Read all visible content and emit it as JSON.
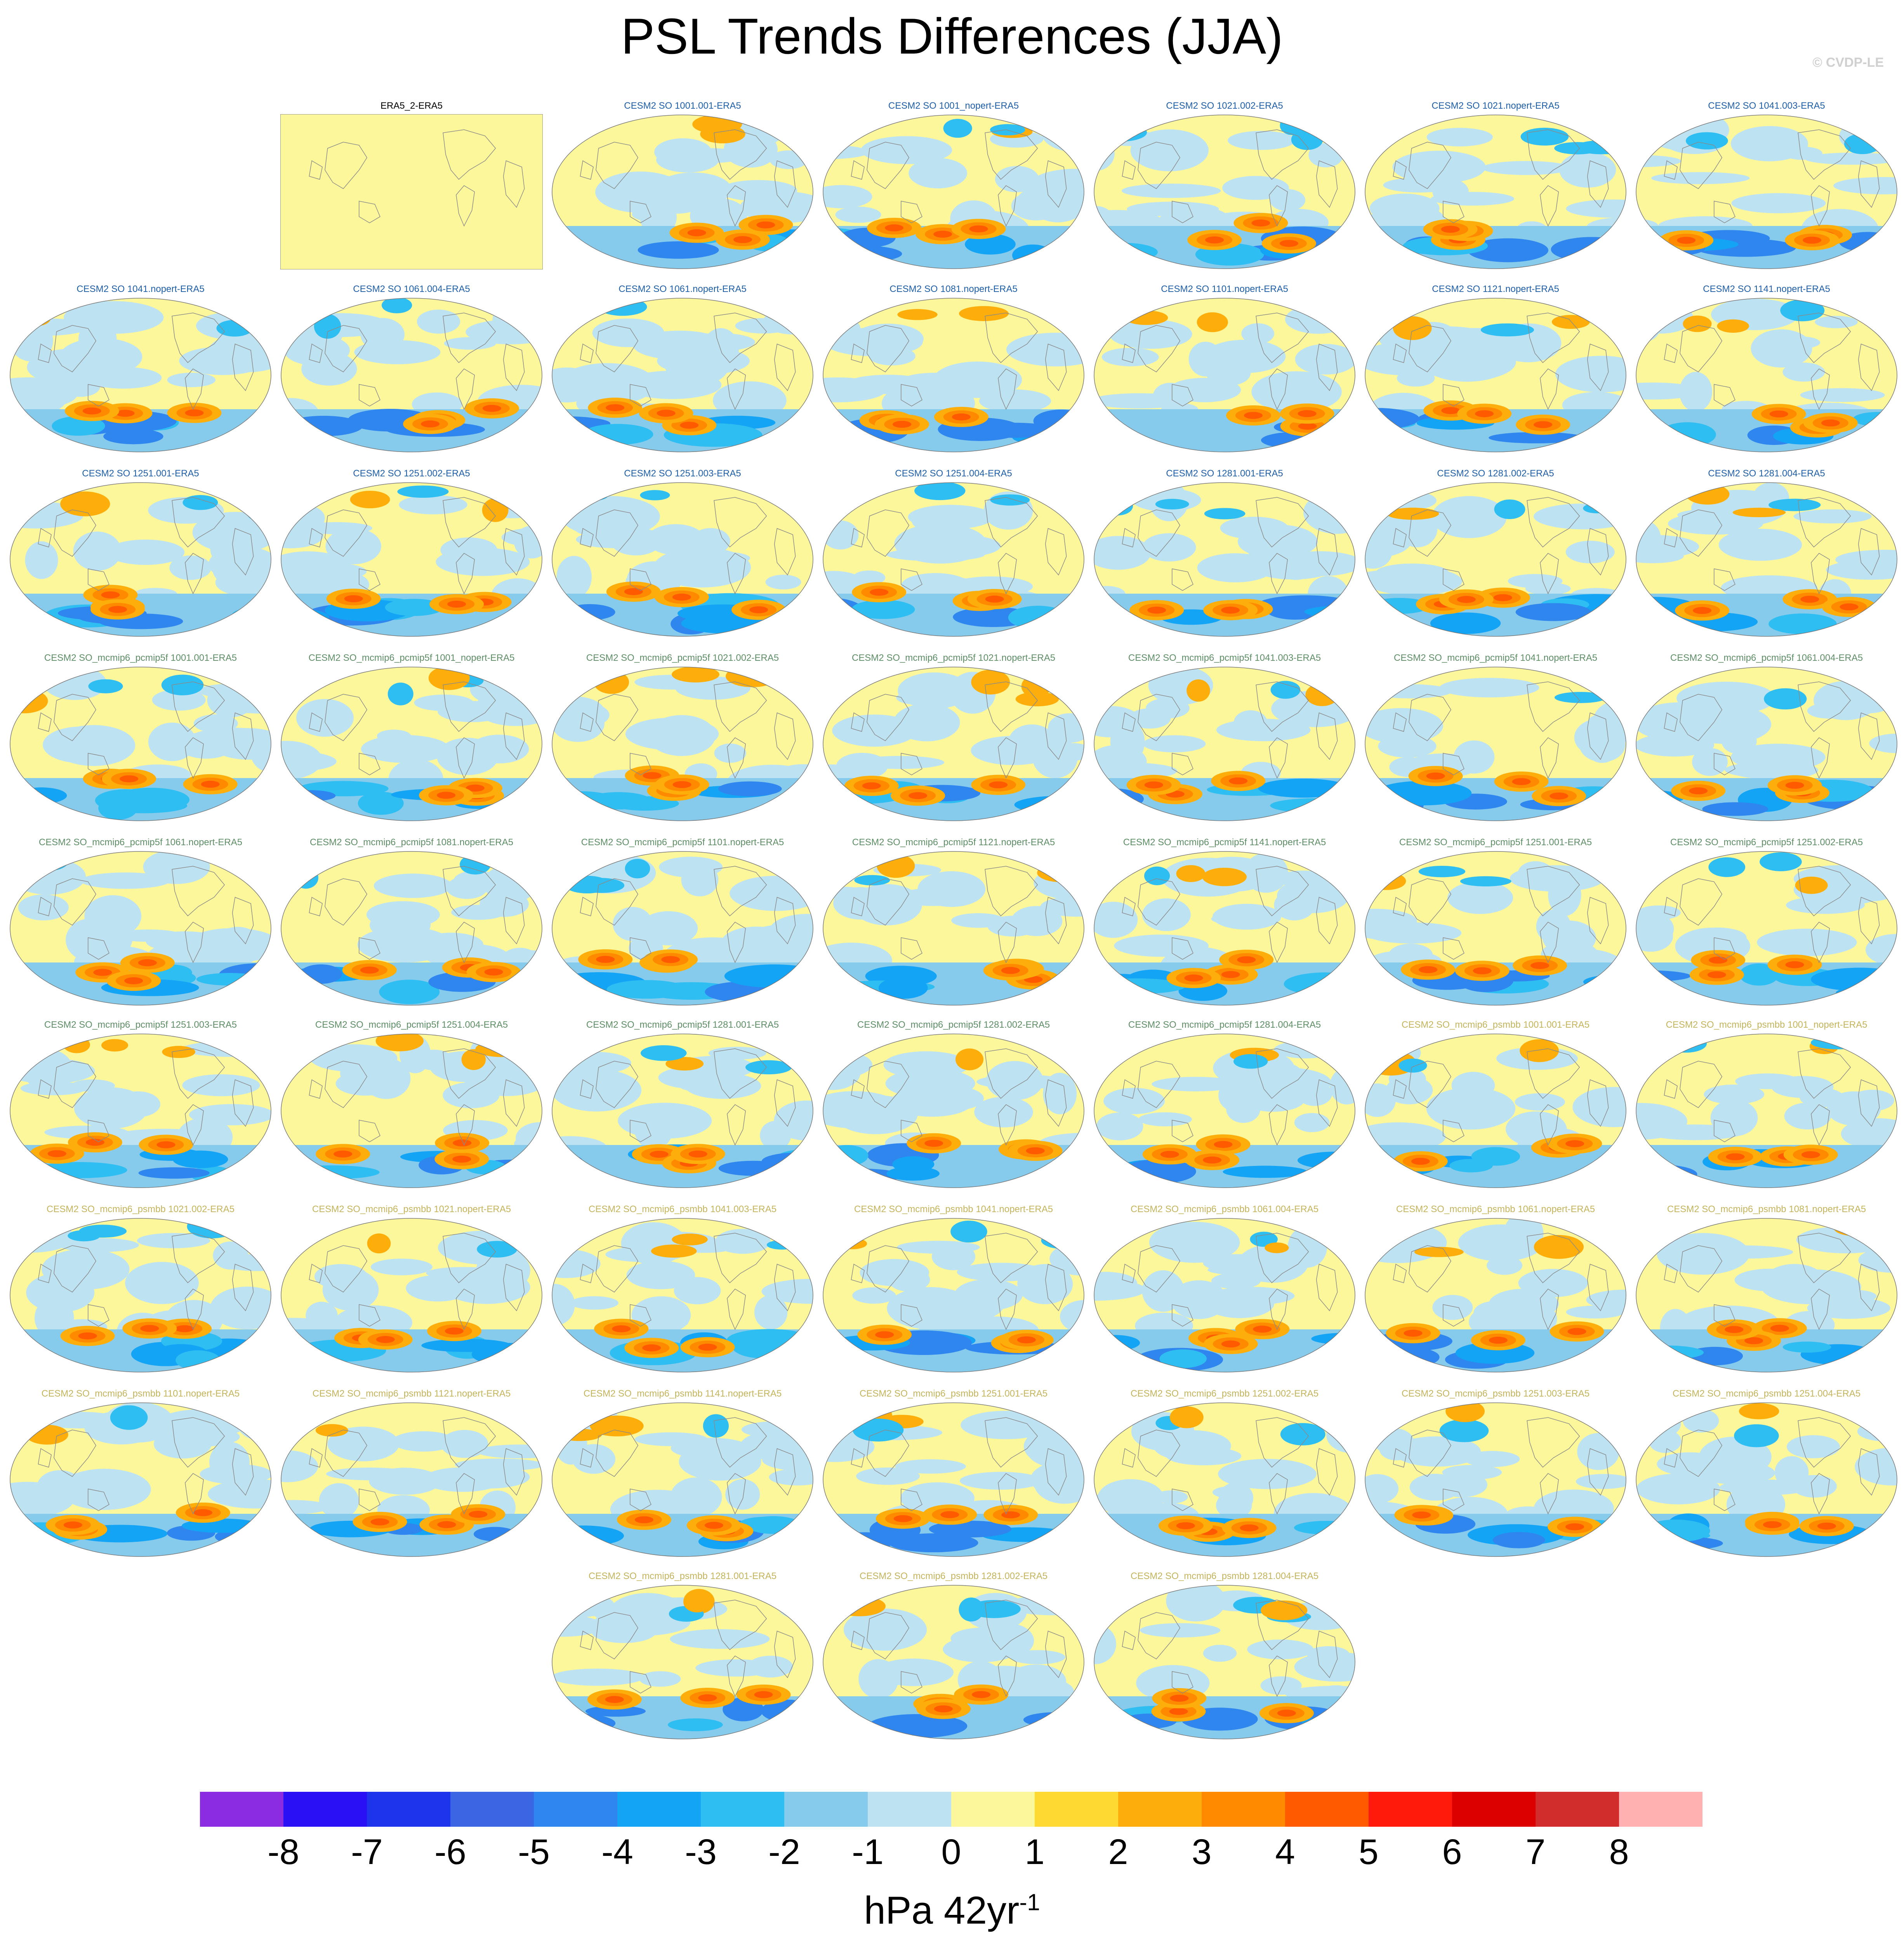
{
  "title": "PSL Trends Differences (JJA)",
  "watermark": "© CVDP-LE",
  "units_base": "hPa 42yr",
  "units_exp": "-1",
  "colorbar": {
    "colors": [
      "#8B2BE2",
      "#2A10F5",
      "#1E33EC",
      "#3A66E4",
      "#2F86EE",
      "#13A4F5",
      "#2EBEF2",
      "#87CBEC",
      "#BDE2F2",
      "#FDF79B",
      "#FDD932",
      "#FDAE0A",
      "#FF8A00",
      "#FF5A00",
      "#FF1A0B",
      "#DD0000",
      "#D22D2D",
      "#FFB0B0"
    ],
    "ticks": [
      "-8",
      "-7",
      "-6",
      "-5",
      "-4",
      "-3",
      "-2",
      "-1",
      "0",
      "1",
      "2",
      "3",
      "4",
      "5",
      "6",
      "7",
      "8"
    ]
  },
  "label_colors": {
    "obs": "#000000",
    "so": "#1F5FA8",
    "pcmip": "#5E8E66",
    "psmbb": "#C4B45C"
  },
  "panels": [
    {
      "label": "ERA5_2-ERA5",
      "group": "obs",
      "seed": 0
    },
    {
      "label": "CESM2 SO 1001.001-ERA5",
      "group": "so",
      "seed": 11
    },
    {
      "label": "CESM2 SO 1001_nopert-ERA5",
      "group": "so",
      "seed": 12
    },
    {
      "label": "CESM2 SO 1021.002-ERA5",
      "group": "so",
      "seed": 13
    },
    {
      "label": "CESM2 SO 1021.nopert-ERA5",
      "group": "so",
      "seed": 14
    },
    {
      "label": "CESM2 SO 1041.003-ERA5",
      "group": "so",
      "seed": 15
    },
    {
      "label": "CESM2 SO 1041.nopert-ERA5",
      "group": "so",
      "seed": 16
    },
    {
      "label": "CESM2 SO 1061.004-ERA5",
      "group": "so",
      "seed": 17
    },
    {
      "label": "CESM2 SO 1061.nopert-ERA5",
      "group": "so",
      "seed": 18
    },
    {
      "label": "CESM2 SO 1081.nopert-ERA5",
      "group": "so",
      "seed": 19
    },
    {
      "label": "CESM2 SO 1101.nopert-ERA5",
      "group": "so",
      "seed": 20
    },
    {
      "label": "CESM2 SO 1121.nopert-ERA5",
      "group": "so",
      "seed": 21
    },
    {
      "label": "CESM2 SO 1141.nopert-ERA5",
      "group": "so",
      "seed": 22
    },
    {
      "label": "CESM2 SO 1251.001-ERA5",
      "group": "so",
      "seed": 23
    },
    {
      "label": "CESM2 SO 1251.002-ERA5",
      "group": "so",
      "seed": 24
    },
    {
      "label": "CESM2 SO 1251.003-ERA5",
      "group": "so",
      "seed": 25
    },
    {
      "label": "CESM2 SO 1251.004-ERA5",
      "group": "so",
      "seed": 26
    },
    {
      "label": "CESM2 SO 1281.001-ERA5",
      "group": "so",
      "seed": 27
    },
    {
      "label": "CESM2 SO 1281.002-ERA5",
      "group": "so",
      "seed": 28
    },
    {
      "label": "CESM2 SO 1281.004-ERA5",
      "group": "so",
      "seed": 29
    },
    {
      "label": "CESM2 SO_mcmip6_pcmip5f 1001.001-ERA5",
      "group": "pcmip",
      "seed": 30
    },
    {
      "label": "CESM2 SO_mcmip6_pcmip5f 1001_nopert-ERA5",
      "group": "pcmip",
      "seed": 31
    },
    {
      "label": "CESM2 SO_mcmip6_pcmip5f 1021.002-ERA5",
      "group": "pcmip",
      "seed": 32
    },
    {
      "label": "CESM2 SO_mcmip6_pcmip5f 1021.nopert-ERA5",
      "group": "pcmip",
      "seed": 33
    },
    {
      "label": "CESM2 SO_mcmip6_pcmip5f 1041.003-ERA5",
      "group": "pcmip",
      "seed": 34
    },
    {
      "label": "CESM2 SO_mcmip6_pcmip5f 1041.nopert-ERA5",
      "group": "pcmip",
      "seed": 35
    },
    {
      "label": "CESM2 SO_mcmip6_pcmip5f 1061.004-ERA5",
      "group": "pcmip",
      "seed": 36
    },
    {
      "label": "CESM2 SO_mcmip6_pcmip5f 1061.nopert-ERA5",
      "group": "pcmip",
      "seed": 37
    },
    {
      "label": "CESM2 SO_mcmip6_pcmip5f 1081.nopert-ERA5",
      "group": "pcmip",
      "seed": 38
    },
    {
      "label": "CESM2 SO_mcmip6_pcmip5f 1101.nopert-ERA5",
      "group": "pcmip",
      "seed": 39
    },
    {
      "label": "CESM2 SO_mcmip6_pcmip5f 1121.nopert-ERA5",
      "group": "pcmip",
      "seed": 40
    },
    {
      "label": "CESM2 SO_mcmip6_pcmip5f 1141.nopert-ERA5",
      "group": "pcmip",
      "seed": 41
    },
    {
      "label": "CESM2 SO_mcmip6_pcmip5f 1251.001-ERA5",
      "group": "pcmip",
      "seed": 42
    },
    {
      "label": "CESM2 SO_mcmip6_pcmip5f 1251.002-ERA5",
      "group": "pcmip",
      "seed": 43
    },
    {
      "label": "CESM2 SO_mcmip6_pcmip5f 1251.003-ERA5",
      "group": "pcmip",
      "seed": 44
    },
    {
      "label": "CESM2 SO_mcmip6_pcmip5f 1251.004-ERA5",
      "group": "pcmip",
      "seed": 45
    },
    {
      "label": "CESM2 SO_mcmip6_pcmip5f 1281.001-ERA5",
      "group": "pcmip",
      "seed": 46
    },
    {
      "label": "CESM2 SO_mcmip6_pcmip5f 1281.002-ERA5",
      "group": "pcmip",
      "seed": 47
    },
    {
      "label": "CESM2 SO_mcmip6_pcmip5f 1281.004-ERA5",
      "group": "pcmip",
      "seed": 48
    },
    {
      "label": "CESM2 SO_mcmip6_psmbb 1001.001-ERA5",
      "group": "psmbb",
      "seed": 49
    },
    {
      "label": "CESM2 SO_mcmip6_psmbb 1001_nopert-ERA5",
      "group": "psmbb",
      "seed": 50
    },
    {
      "label": "CESM2 SO_mcmip6_psmbb 1021.002-ERA5",
      "group": "psmbb",
      "seed": 51
    },
    {
      "label": "CESM2 SO_mcmip6_psmbb 1021.nopert-ERA5",
      "group": "psmbb",
      "seed": 52
    },
    {
      "label": "CESM2 SO_mcmip6_psmbb 1041.003-ERA5",
      "group": "psmbb",
      "seed": 53
    },
    {
      "label": "CESM2 SO_mcmip6_psmbb 1041.nopert-ERA5",
      "group": "psmbb",
      "seed": 54
    },
    {
      "label": "CESM2 SO_mcmip6_psmbb 1061.004-ERA5",
      "group": "psmbb",
      "seed": 55
    },
    {
      "label": "CESM2 SO_mcmip6_psmbb 1061.nopert-ERA5",
      "group": "psmbb",
      "seed": 56
    },
    {
      "label": "CESM2 SO_mcmip6_psmbb 1081.nopert-ERA5",
      "group": "psmbb",
      "seed": 57
    },
    {
      "label": "CESM2 SO_mcmip6_psmbb 1101.nopert-ERA5",
      "group": "psmbb",
      "seed": 58
    },
    {
      "label": "CESM2 SO_mcmip6_psmbb 1121.nopert-ERA5",
      "group": "psmbb",
      "seed": 59
    },
    {
      "label": "CESM2 SO_mcmip6_psmbb 1141.nopert-ERA5",
      "group": "psmbb",
      "seed": 60
    },
    {
      "label": "CESM2 SO_mcmip6_psmbb 1251.001-ERA5",
      "group": "psmbb",
      "seed": 61
    },
    {
      "label": "CESM2 SO_mcmip6_psmbb 1251.002-ERA5",
      "group": "psmbb",
      "seed": 62
    },
    {
      "label": "CESM2 SO_mcmip6_psmbb 1251.003-ERA5",
      "group": "psmbb",
      "seed": 63
    },
    {
      "label": "CESM2 SO_mcmip6_psmbb 1251.004-ERA5",
      "group": "psmbb",
      "seed": 64
    },
    {
      "label": "CESM2 SO_mcmip6_psmbb 1281.001-ERA5",
      "group": "psmbb",
      "seed": 65
    },
    {
      "label": "CESM2 SO_mcmip6_psmbb 1281.002-ERA5",
      "group": "psmbb",
      "seed": 66
    },
    {
      "label": "CESM2 SO_mcmip6_psmbb 1281.004-ERA5",
      "group": "psmbb",
      "seed": 67
    }
  ]
}
